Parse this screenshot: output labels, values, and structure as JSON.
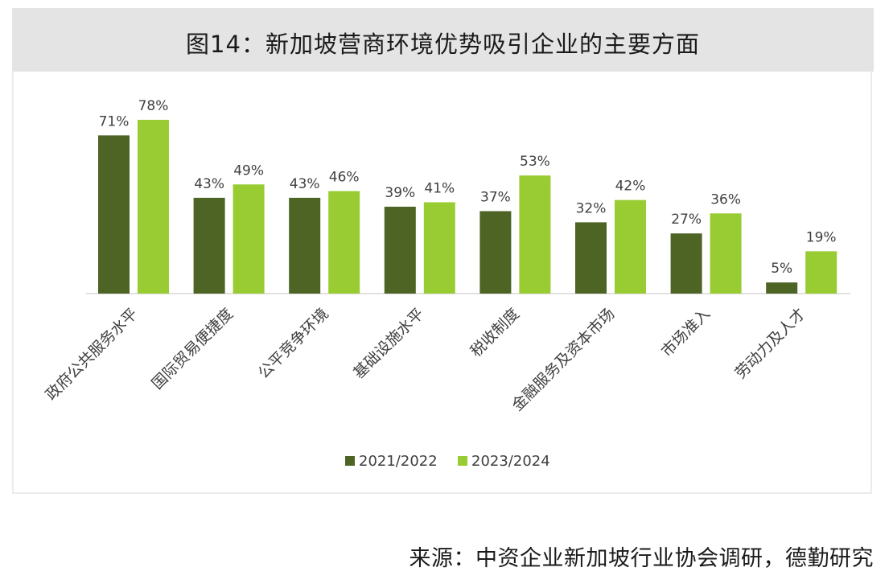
{
  "title": "图14：新加坡营商环境优势吸引企业的主要方面",
  "source": "来源：中资企业新加坡行业协会调研，德勤研究",
  "colors": {
    "series_2021": "#4d6425",
    "series_2023": "#99cc33",
    "title_bg": "#e4e4e4"
  },
  "chart_data": {
    "type": "bar",
    "title": "",
    "xlabel": "",
    "ylabel": "",
    "ylim": [
      0,
      100
    ],
    "grid": false,
    "legend_position": "bottom",
    "categories": [
      "政府公共服务水平",
      "国际贸易便捷度",
      "公平竞争环境",
      "基础设施水平",
      "税收制度",
      "金融服务及资本市场",
      "市场准入",
      "劳动力及人才"
    ],
    "series": [
      {
        "name": "2021/2022",
        "values": [
          71,
          43,
          43,
          39,
          37,
          32,
          27,
          5
        ],
        "labels": [
          "71%",
          "43%",
          "43%",
          "39%",
          "37%",
          "32%",
          "27%",
          "5%"
        ]
      },
      {
        "name": "2023/2024",
        "values": [
          78,
          49,
          46,
          41,
          53,
          42,
          36,
          19
        ],
        "labels": [
          "78%",
          "49%",
          "46%",
          "41%",
          "53%",
          "42%",
          "36%",
          "19%"
        ]
      }
    ]
  }
}
